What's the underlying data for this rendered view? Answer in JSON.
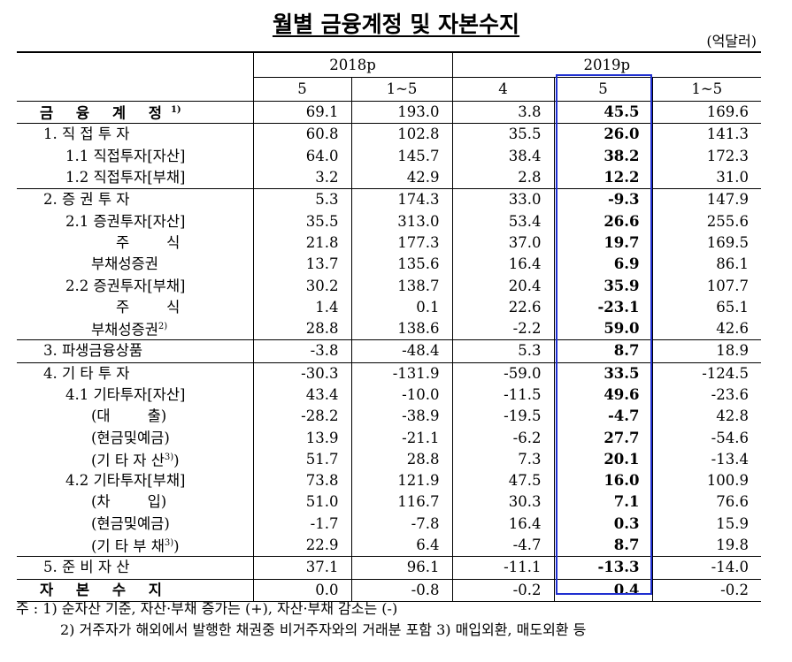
{
  "title": "월별 금융계정 및 자본수지",
  "unit": "(억달러)",
  "header": {
    "year1": "2018p",
    "year2": "2019p",
    "cols": [
      "5",
      "1~5",
      "4",
      "5",
      "1~5"
    ]
  },
  "rows": [
    {
      "label": "금 융 계 정",
      "sup": "1)",
      "values": [
        "69.1",
        "193.0",
        "3.8",
        "45.5",
        "169.6"
      ]
    },
    {
      "label": "1. 직 접 투 자",
      "values": [
        "60.8",
        "102.8",
        "35.5",
        "26.0",
        "141.3"
      ]
    },
    {
      "label": "1.1 직접투자[자산]",
      "values": [
        "64.0",
        "145.7",
        "38.4",
        "38.2",
        "172.3"
      ]
    },
    {
      "label": "1.2 직접투자[부채]",
      "values": [
        "3.2",
        "42.9",
        "2.8",
        "12.2",
        "31.0"
      ]
    },
    {
      "label": "2. 증 권 투 자",
      "values": [
        "5.3",
        "174.3",
        "33.0",
        "-9.3",
        "147.9"
      ]
    },
    {
      "label": "2.1 증권투자[자산]",
      "values": [
        "35.5",
        "313.0",
        "53.4",
        "26.6",
        "255.6"
      ]
    },
    {
      "label": "주        식",
      "values": [
        "21.8",
        "177.3",
        "37.0",
        "19.7",
        "169.5"
      ]
    },
    {
      "label": "부채성증권",
      "values": [
        "13.7",
        "135.6",
        "16.4",
        "6.9",
        "86.1"
      ]
    },
    {
      "label": "2.2 증권투자[부채]",
      "values": [
        "30.2",
        "138.7",
        "20.4",
        "35.9",
        "107.7"
      ]
    },
    {
      "label": "주        식",
      "values": [
        "1.4",
        "0.1",
        "22.6",
        "-23.1",
        "65.1"
      ]
    },
    {
      "label": "부채성증권",
      "sup": "2)",
      "values": [
        "28.8",
        "138.6",
        "-2.2",
        "59.0",
        "42.6"
      ]
    },
    {
      "label": "3. 파생금융상품",
      "values": [
        "-3.8",
        "-48.4",
        "5.3",
        "8.7",
        "18.9"
      ]
    },
    {
      "label": "4. 기 타 투 자",
      "values": [
        "-30.3",
        "-131.9",
        "-59.0",
        "33.5",
        "-124.5"
      ]
    },
    {
      "label": "4.1 기타투자[자산]",
      "values": [
        "43.4",
        "-10.0",
        "-11.5",
        "49.6",
        "-23.6"
      ]
    },
    {
      "label": "(대        출)",
      "values": [
        "-28.2",
        "-38.9",
        "-19.5",
        "-4.7",
        "42.8"
      ]
    },
    {
      "label": "(현금및예금)",
      "values": [
        "13.9",
        "-21.1",
        "-6.2",
        "27.7",
        "-54.6"
      ]
    },
    {
      "label": "(기 타 자 산",
      "sup": "3)",
      "tail": ")",
      "values": [
        "51.7",
        "28.8",
        "7.3",
        "20.1",
        "-13.4"
      ]
    },
    {
      "label": "4.2 기타투자[부채]",
      "values": [
        "73.8",
        "121.9",
        "47.5",
        "16.0",
        "100.9"
      ]
    },
    {
      "label": "(차        입)",
      "values": [
        "51.0",
        "116.7",
        "30.3",
        "7.1",
        "76.6"
      ]
    },
    {
      "label": "(현금및예금)",
      "values": [
        "-1.7",
        "-7.8",
        "16.4",
        "0.3",
        "15.9"
      ]
    },
    {
      "label": "(기 타 부 채",
      "sup": "3)",
      "tail": ")",
      "values": [
        "22.9",
        "6.4",
        "-4.7",
        "8.7",
        "19.8"
      ]
    },
    {
      "label": "5. 준 비 자 산",
      "values": [
        "37.1",
        "96.1",
        "-11.1",
        "-13.3",
        "-14.0"
      ]
    },
    {
      "label": "자 본 수 지",
      "values": [
        "0.0",
        "-0.8",
        "-0.2",
        "0.4",
        "-0.2"
      ]
    }
  ],
  "notes": {
    "line1": "주 : 1) 순자산 기준, 자산·부채 증가는 (+), 자산·부채 감소는 (-)",
    "line2": "2) 거주자가 해외에서 발행한 채권중 비거주자와의 거래분 포함  3) 매입외환, 매도외환 등"
  },
  "colors": {
    "highlight_border": "#1f2fd0"
  }
}
